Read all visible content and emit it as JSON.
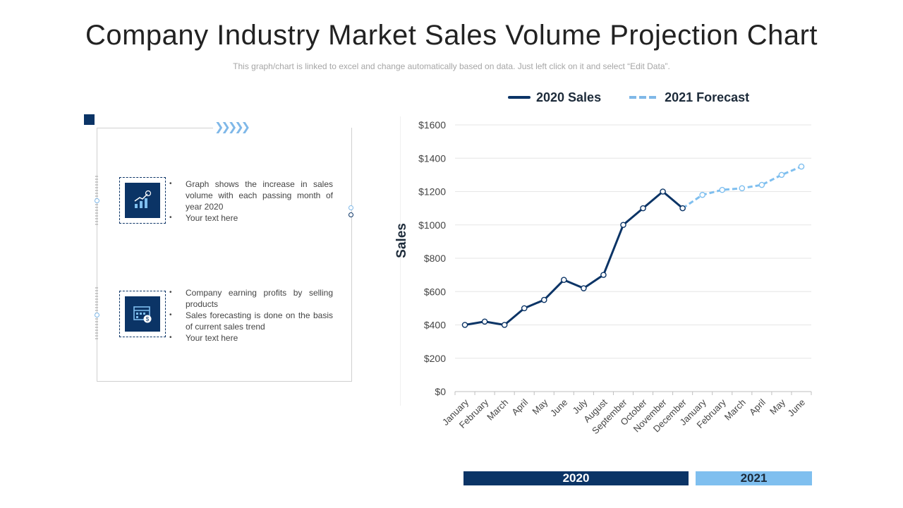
{
  "header": {
    "title": "Company Industry Market Sales Volume Projection Chart",
    "subtitle": "This graph/chart is linked to excel and change automatically based on data. Just left click on it and select “Edit Data”."
  },
  "left_panel": {
    "card1": {
      "icon": "growth-chart-icon",
      "bullets": [
        "Graph shows the increase in sales volume with each passing month of year 2020",
        "Your text here"
      ]
    },
    "card2": {
      "icon": "calendar-money-icon",
      "bullets": [
        "Company earning profits by selling products",
        "Sales forecasting is done on the basis of current sales trend",
        "Your text here"
      ]
    }
  },
  "colors": {
    "navy": "#0b3466",
    "light_blue": "#7fbfef",
    "grid": "#e6e6e6"
  },
  "chart_data": {
    "type": "line",
    "title": "",
    "xlabel": "",
    "ylabel": "Sales",
    "ylim": [
      0,
      1600
    ],
    "y_ticks": [
      0,
      200,
      400,
      600,
      800,
      1000,
      1200,
      1400,
      1600
    ],
    "y_tick_labels": [
      "$0",
      "$200",
      "$400",
      "$600",
      "$800",
      "$1000",
      "$1200",
      "$1400",
      "$1600"
    ],
    "categories": [
      "January",
      "February",
      "March",
      "April",
      "May",
      "June",
      "July",
      "August",
      "September",
      "October",
      "November",
      "December",
      "January",
      "February",
      "March",
      "April",
      "May",
      "June"
    ],
    "series": [
      {
        "name": "2020 Sales",
        "style": "solid",
        "values": [
          400,
          420,
          400,
          500,
          550,
          670,
          620,
          700,
          1000,
          1100,
          1200,
          1100,
          null,
          null,
          null,
          null,
          null,
          null
        ]
      },
      {
        "name": "2021 Forecast",
        "style": "dashed",
        "values": [
          null,
          null,
          null,
          null,
          null,
          null,
          null,
          null,
          null,
          null,
          null,
          1100,
          1180,
          1210,
          1220,
          1240,
          1300,
          1350
        ]
      }
    ],
    "legend": "top-center",
    "year_groups": [
      {
        "label": "2020",
        "months": 12
      },
      {
        "label": "2021",
        "months": 6
      }
    ]
  }
}
